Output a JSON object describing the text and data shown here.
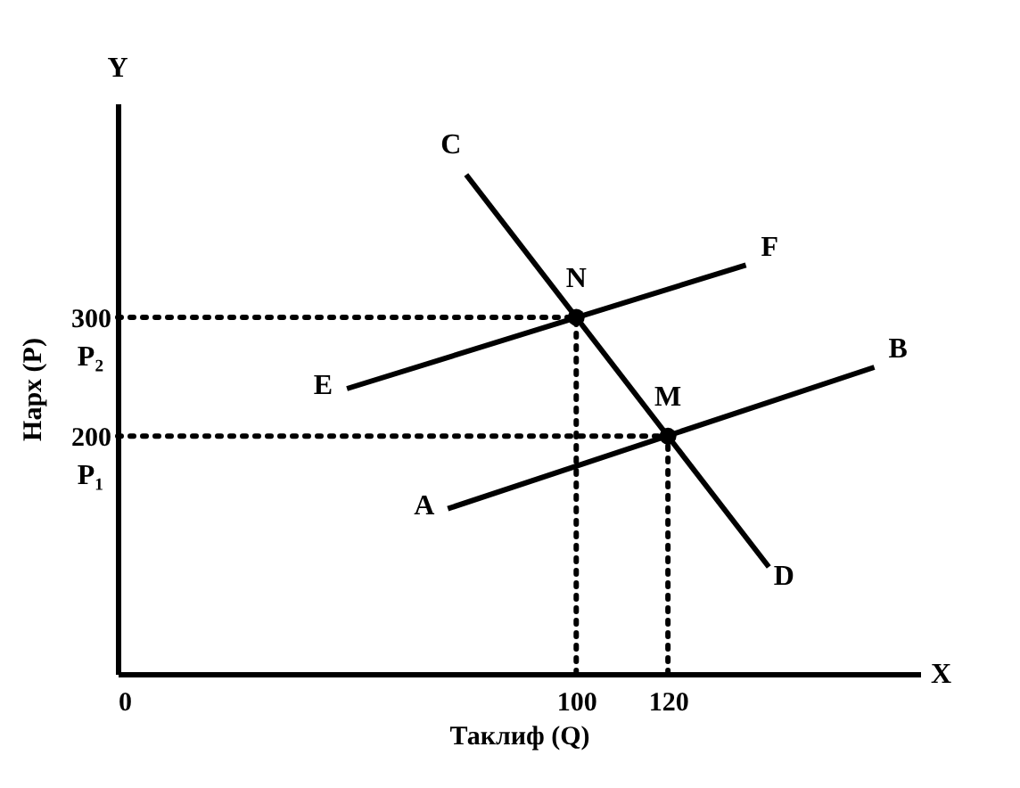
{
  "chart_data": {
    "type": "line",
    "xlabel": "Таклиф (Q)",
    "ylabel": "Нарх (P)",
    "xlim": [
      0,
      175
    ],
    "ylim": [
      0,
      480
    ],
    "xticks": [
      0,
      100,
      120
    ],
    "yticks": [
      200,
      300
    ],
    "grid": false,
    "series": [
      {
        "color": "#000000",
        "x": [
          76,
          142
        ],
        "values": [
          420,
          90
        ],
        "line_style": "solid"
      },
      {
        "color": "#000000",
        "x": [
          50,
          137
        ],
        "values": [
          240,
          344
        ],
        "line_style": "solid"
      },
      {
        "color": "#000000",
        "x": [
          72,
          165
        ],
        "values": [
          139,
          258
        ],
        "line_style": "solid"
      },
      {
        "color": "#000000",
        "x": [
          0,
          100
        ],
        "values": [
          300,
          300
        ],
        "line_style": "dotted"
      },
      {
        "color": "#000000",
        "x": [
          100,
          100
        ],
        "values": [
          0,
          300
        ],
        "line_style": "dotted"
      },
      {
        "color": "#000000",
        "x": [
          0,
          120
        ],
        "values": [
          200,
          200
        ],
        "line_style": "dotted"
      },
      {
        "color": "#000000",
        "x": [
          120,
          120
        ],
        "values": [
          0,
          200
        ],
        "line_style": "dotted"
      },
      {
        "type": "scatter",
        "color": "#000000",
        "x": [
          100,
          120
        ],
        "values": [
          300,
          200
        ],
        "marker": "circle"
      }
    ],
    "annotations": [
      "Y",
      "X",
      {
        "text": "C",
        "x": 76,
        "y": 420
      },
      {
        "text": "D",
        "x": 142,
        "y": 90
      },
      {
        "text": "E",
        "x": 50,
        "y": 240
      },
      {
        "text": "F",
        "x": 137,
        "y": 344
      },
      {
        "text": "A",
        "x": 72,
        "y": 139
      },
      {
        "text": "B",
        "x": 165,
        "y": 258
      },
      {
        "text": "N",
        "x": 100,
        "y": 300
      },
      {
        "text": "M",
        "x": 120,
        "y": 200
      },
      "P₂",
      "P₁"
    ]
  }
}
